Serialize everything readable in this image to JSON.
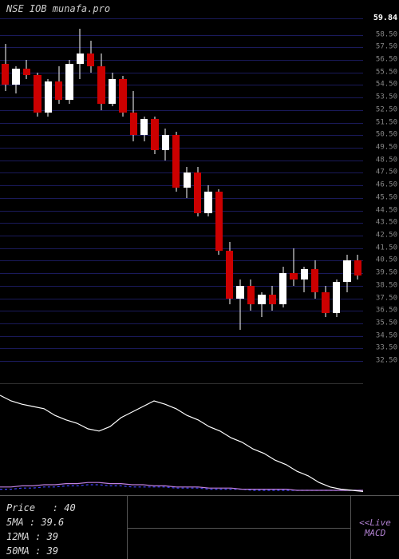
{
  "header": {
    "text": "NSE IOB munafa.pro"
  },
  "chart": {
    "ylim": [
      32,
      60
    ],
    "highlight_price": 59.84,
    "price_labels": [
      59.84,
      58.5,
      57.5,
      56.5,
      55.5,
      54.5,
      53.5,
      52.5,
      51.5,
      50.5,
      49.5,
      48.5,
      47.5,
      46.5,
      45.5,
      44.5,
      43.5,
      42.5,
      41.5,
      40.5,
      39.5,
      38.5,
      37.5,
      36.5,
      35.5,
      34.5,
      33.5,
      32.5
    ],
    "grid_color": "#1a1a5a",
    "candle_up_color": "#ffffff",
    "candle_down_color": "#cc0000",
    "wick_color": "#ffffff",
    "candles": [
      {
        "o": 56.2,
        "h": 57.8,
        "l": 54.0,
        "c": 54.5
      },
      {
        "o": 54.5,
        "h": 56.0,
        "l": 53.8,
        "c": 55.8
      },
      {
        "o": 55.8,
        "h": 56.5,
        "l": 55.0,
        "c": 55.3
      },
      {
        "o": 55.3,
        "h": 55.5,
        "l": 52.0,
        "c": 52.3
      },
      {
        "o": 52.3,
        "h": 55.0,
        "l": 52.0,
        "c": 54.8
      },
      {
        "o": 54.8,
        "h": 56.0,
        "l": 53.0,
        "c": 53.3
      },
      {
        "o": 53.3,
        "h": 56.5,
        "l": 53.0,
        "c": 56.2
      },
      {
        "o": 56.2,
        "h": 59.0,
        "l": 55.0,
        "c": 57.0
      },
      {
        "o": 57.0,
        "h": 58.0,
        "l": 55.5,
        "c": 56.0
      },
      {
        "o": 56.0,
        "h": 57.0,
        "l": 52.5,
        "c": 53.0
      },
      {
        "o": 53.0,
        "h": 55.5,
        "l": 52.8,
        "c": 55.0
      },
      {
        "o": 55.0,
        "h": 55.2,
        "l": 52.0,
        "c": 52.3
      },
      {
        "o": 52.3,
        "h": 54.0,
        "l": 50.0,
        "c": 50.5
      },
      {
        "o": 50.5,
        "h": 52.0,
        "l": 50.0,
        "c": 51.8
      },
      {
        "o": 51.8,
        "h": 52.0,
        "l": 49.0,
        "c": 49.3
      },
      {
        "o": 49.3,
        "h": 51.0,
        "l": 48.5,
        "c": 50.5
      },
      {
        "o": 50.5,
        "h": 50.8,
        "l": 46.0,
        "c": 46.3
      },
      {
        "o": 46.3,
        "h": 48.0,
        "l": 45.5,
        "c": 47.5
      },
      {
        "o": 47.5,
        "h": 48.0,
        "l": 44.0,
        "c": 44.3
      },
      {
        "o": 44.3,
        "h": 46.5,
        "l": 44.0,
        "c": 46.0
      },
      {
        "o": 46.0,
        "h": 46.2,
        "l": 41.0,
        "c": 41.3
      },
      {
        "o": 41.3,
        "h": 42.0,
        "l": 37.0,
        "c": 37.5
      },
      {
        "o": 37.5,
        "h": 39.0,
        "l": 35.0,
        "c": 38.5
      },
      {
        "o": 38.5,
        "h": 39.0,
        "l": 36.5,
        "c": 37.0
      },
      {
        "o": 37.0,
        "h": 38.0,
        "l": 36.0,
        "c": 37.8
      },
      {
        "o": 37.8,
        "h": 38.5,
        "l": 36.5,
        "c": 37.0
      },
      {
        "o": 37.0,
        "h": 40.0,
        "l": 36.8,
        "c": 39.5
      },
      {
        "o": 39.5,
        "h": 41.5,
        "l": 38.5,
        "c": 39.0
      },
      {
        "o": 39.0,
        "h": 40.0,
        "l": 38.0,
        "c": 39.8
      },
      {
        "o": 39.8,
        "h": 40.5,
        "l": 37.5,
        "c": 38.0
      },
      {
        "o": 38.0,
        "h": 38.5,
        "l": 36.0,
        "c": 36.3
      },
      {
        "o": 36.3,
        "h": 39.0,
        "l": 36.0,
        "c": 38.8
      },
      {
        "o": 38.8,
        "h": 41.0,
        "l": 38.0,
        "c": 40.5
      },
      {
        "o": 40.5,
        "h": 41.0,
        "l": 39.0,
        "c": 39.3
      }
    ]
  },
  "macd": {
    "line1_color": "#ffffff",
    "line2_color": "#c080e0",
    "line3_color": "#4040ff",
    "line1": [
      90,
      85,
      82,
      80,
      78,
      72,
      68,
      65,
      60,
      58,
      62,
      70,
      75,
      80,
      85,
      82,
      78,
      72,
      68,
      62,
      58,
      52,
      48,
      42,
      38,
      32,
      28,
      22,
      18,
      12,
      8,
      6,
      5,
      4
    ],
    "line2": [
      8,
      8,
      9,
      9,
      10,
      10,
      11,
      11,
      12,
      12,
      11,
      11,
      10,
      10,
      9,
      9,
      8,
      8,
      8,
      7,
      7,
      7,
      6,
      6,
      6,
      6,
      6,
      5,
      5,
      5,
      5,
      5,
      5,
      5
    ],
    "line3": [
      6,
      6,
      7,
      7,
      8,
      8,
      9,
      9,
      10,
      10,
      9,
      9,
      8,
      8,
      8,
      8,
      7,
      7,
      7,
      6,
      6,
      6,
      6,
      5,
      5,
      5,
      5,
      5,
      5,
      5,
      5,
      5,
      5,
      5
    ]
  },
  "info": {
    "price_label": "Price   :",
    "price_value": "40",
    "ma5_label": "5MA :",
    "ma5_value": "39.6",
    "ma12_label": "12MA :",
    "ma12_value": "39",
    "ma50_label": "50MA :",
    "ma50_value": "39",
    "live_label": "<<Live\nMACD"
  }
}
